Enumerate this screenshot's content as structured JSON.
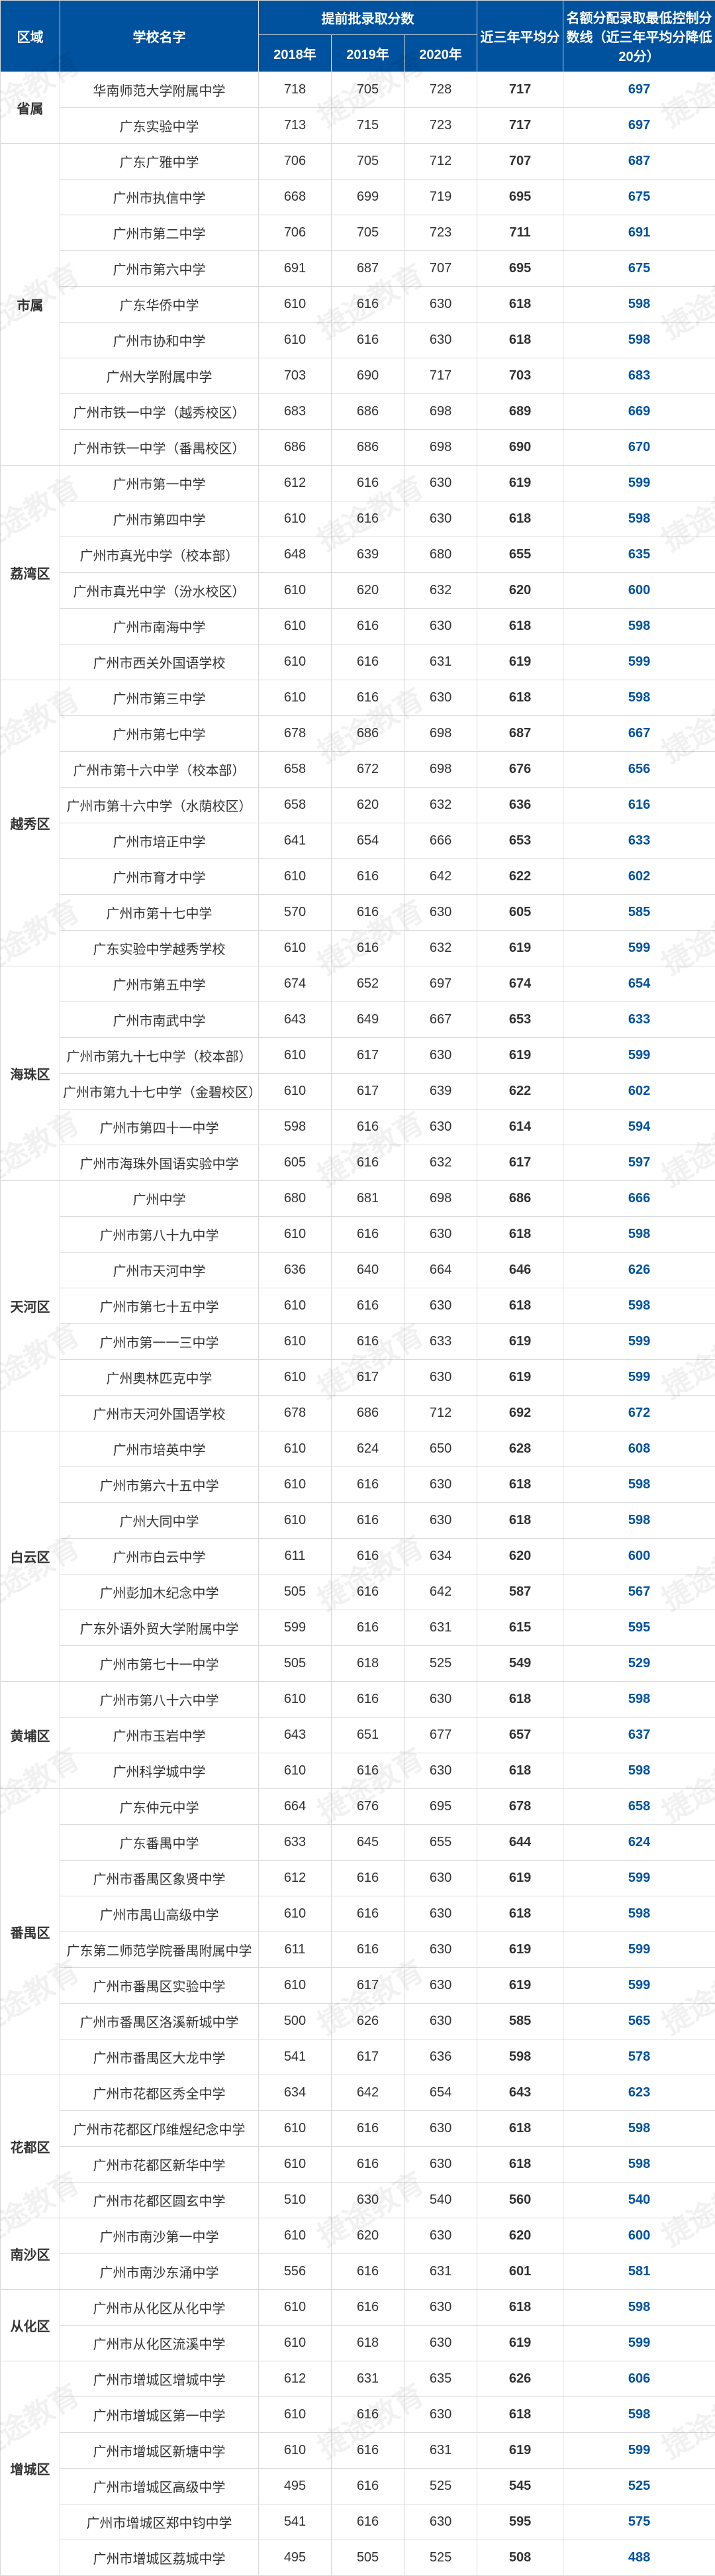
{
  "header": {
    "region": "区域",
    "school": "学校名字",
    "score_group": "提前批录取分数",
    "y2018": "2018年",
    "y2019": "2019年",
    "y2020": "2020年",
    "avg": "近三年平均分",
    "ctrl": "名额分配录取最低控制分数线（近三年平均分降低20分）"
  },
  "watermark_text": "捷途教育",
  "regions": [
    {
      "name": "省属",
      "rows": [
        {
          "school": "华南师范大学附属中学",
          "y2018": 718,
          "y2019": 705,
          "y2020": 728,
          "avg": 717,
          "ctrl": 697
        },
        {
          "school": "广东实验中学",
          "y2018": 713,
          "y2019": 715,
          "y2020": 723,
          "avg": 717,
          "ctrl": 697
        }
      ]
    },
    {
      "name": "市属",
      "rows": [
        {
          "school": "广东广雅中学",
          "y2018": 706,
          "y2019": 705,
          "y2020": 712,
          "avg": 707,
          "ctrl": 687
        },
        {
          "school": "广州市执信中学",
          "y2018": 668,
          "y2019": 699,
          "y2020": 719,
          "avg": 695,
          "ctrl": 675
        },
        {
          "school": "广州市第二中学",
          "y2018": 706,
          "y2019": 705,
          "y2020": 723,
          "avg": 711,
          "ctrl": 691
        },
        {
          "school": "广州市第六中学",
          "y2018": 691,
          "y2019": 687,
          "y2020": 707,
          "avg": 695,
          "ctrl": 675
        },
        {
          "school": "广东华侨中学",
          "y2018": 610,
          "y2019": 616,
          "y2020": 630,
          "avg": 618,
          "ctrl": 598
        },
        {
          "school": "广州市协和中学",
          "y2018": 610,
          "y2019": 616,
          "y2020": 630,
          "avg": 618,
          "ctrl": 598
        },
        {
          "school": "广州大学附属中学",
          "y2018": 703,
          "y2019": 690,
          "y2020": 717,
          "avg": 703,
          "ctrl": 683
        },
        {
          "school": "广州市铁一中学（越秀校区）",
          "y2018": 683,
          "y2019": 686,
          "y2020": 698,
          "avg": 689,
          "ctrl": 669
        },
        {
          "school": "广州市铁一中学（番禺校区）",
          "y2018": 686,
          "y2019": 686,
          "y2020": 698,
          "avg": 690,
          "ctrl": 670
        }
      ]
    },
    {
      "name": "荔湾区",
      "rows": [
        {
          "school": "广州市第一中学",
          "y2018": 612,
          "y2019": 616,
          "y2020": 630,
          "avg": 619,
          "ctrl": 599
        },
        {
          "school": "广州市第四中学",
          "y2018": 610,
          "y2019": 616,
          "y2020": 630,
          "avg": 618,
          "ctrl": 598
        },
        {
          "school": "广州市真光中学（校本部）",
          "y2018": 648,
          "y2019": 639,
          "y2020": 680,
          "avg": 655,
          "ctrl": 635
        },
        {
          "school": "广州市真光中学（汾水校区）",
          "y2018": 610,
          "y2019": 620,
          "y2020": 632,
          "avg": 620,
          "ctrl": 600
        },
        {
          "school": "广州市南海中学",
          "y2018": 610,
          "y2019": 616,
          "y2020": 630,
          "avg": 618,
          "ctrl": 598
        },
        {
          "school": "广州市西关外国语学校",
          "y2018": 610,
          "y2019": 616,
          "y2020": 631,
          "avg": 619,
          "ctrl": 599
        }
      ]
    },
    {
      "name": "越秀区",
      "rows": [
        {
          "school": "广州市第三中学",
          "y2018": 610,
          "y2019": 616,
          "y2020": 630,
          "avg": 618,
          "ctrl": 598
        },
        {
          "school": "广州市第七中学",
          "y2018": 678,
          "y2019": 686,
          "y2020": 698,
          "avg": 687,
          "ctrl": 667
        },
        {
          "school": "广州市第十六中学（校本部）",
          "y2018": 658,
          "y2019": 672,
          "y2020": 698,
          "avg": 676,
          "ctrl": 656
        },
        {
          "school": "广州市第十六中学（水荫校区）",
          "y2018": 658,
          "y2019": 620,
          "y2020": 632,
          "avg": 636,
          "ctrl": 616
        },
        {
          "school": "广州市培正中学",
          "y2018": 641,
          "y2019": 654,
          "y2020": 666,
          "avg": 653,
          "ctrl": 633
        },
        {
          "school": "广州市育才中学",
          "y2018": 610,
          "y2019": 616,
          "y2020": 642,
          "avg": 622,
          "ctrl": 602
        },
        {
          "school": "广州市第十七中学",
          "y2018": 570,
          "y2019": 616,
          "y2020": 630,
          "avg": 605,
          "ctrl": 585
        },
        {
          "school": "广东实验中学越秀学校",
          "y2018": 610,
          "y2019": 616,
          "y2020": 632,
          "avg": 619,
          "ctrl": 599
        }
      ]
    },
    {
      "name": "海珠区",
      "rows": [
        {
          "school": "广州市第五中学",
          "y2018": 674,
          "y2019": 652,
          "y2020": 697,
          "avg": 674,
          "ctrl": 654
        },
        {
          "school": "广州市南武中学",
          "y2018": 643,
          "y2019": 649,
          "y2020": 667,
          "avg": 653,
          "ctrl": 633
        },
        {
          "school": "广州市第九十七中学（校本部）",
          "y2018": 610,
          "y2019": 617,
          "y2020": 630,
          "avg": 619,
          "ctrl": 599
        },
        {
          "school": "广州市第九十七中学（金碧校区）",
          "y2018": 610,
          "y2019": 617,
          "y2020": 639,
          "avg": 622,
          "ctrl": 602
        },
        {
          "school": "广州市第四十一中学",
          "y2018": 598,
          "y2019": 616,
          "y2020": 630,
          "avg": 614,
          "ctrl": 594
        },
        {
          "school": "广州市海珠外国语实验中学",
          "y2018": 605,
          "y2019": 616,
          "y2020": 632,
          "avg": 617,
          "ctrl": 597
        }
      ]
    },
    {
      "name": "天河区",
      "rows": [
        {
          "school": "广州中学",
          "y2018": 680,
          "y2019": 681,
          "y2020": 698,
          "avg": 686,
          "ctrl": 666
        },
        {
          "school": "广州市第八十九中学",
          "y2018": 610,
          "y2019": 616,
          "y2020": 630,
          "avg": 618,
          "ctrl": 598
        },
        {
          "school": "广州市天河中学",
          "y2018": 636,
          "y2019": 640,
          "y2020": 664,
          "avg": 646,
          "ctrl": 626
        },
        {
          "school": "广州市第七十五中学",
          "y2018": 610,
          "y2019": 616,
          "y2020": 630,
          "avg": 618,
          "ctrl": 598
        },
        {
          "school": "广州市第一一三中学",
          "y2018": 610,
          "y2019": 616,
          "y2020": 633,
          "avg": 619,
          "ctrl": 599
        },
        {
          "school": "广州奥林匹克中学",
          "y2018": 610,
          "y2019": 617,
          "y2020": 630,
          "avg": 619,
          "ctrl": 599
        },
        {
          "school": "广州市天河外国语学校",
          "y2018": 678,
          "y2019": 686,
          "y2020": 712,
          "avg": 692,
          "ctrl": 672
        }
      ]
    },
    {
      "name": "白云区",
      "rows": [
        {
          "school": "广州市培英中学",
          "y2018": 610,
          "y2019": 624,
          "y2020": 650,
          "avg": 628,
          "ctrl": 608
        },
        {
          "school": "广州市第六十五中学",
          "y2018": 610,
          "y2019": 616,
          "y2020": 630,
          "avg": 618,
          "ctrl": 598
        },
        {
          "school": "广州大同中学",
          "y2018": 610,
          "y2019": 616,
          "y2020": 630,
          "avg": 618,
          "ctrl": 598
        },
        {
          "school": "广州市白云中学",
          "y2018": 611,
          "y2019": 616,
          "y2020": 634,
          "avg": 620,
          "ctrl": 600
        },
        {
          "school": "广州彭加木纪念中学",
          "y2018": 505,
          "y2019": 616,
          "y2020": 642,
          "avg": 587,
          "ctrl": 567
        },
        {
          "school": "广东外语外贸大学附属中学",
          "y2018": 599,
          "y2019": 616,
          "y2020": 631,
          "avg": 615,
          "ctrl": 595
        },
        {
          "school": "广州市第七十一中学",
          "y2018": 505,
          "y2019": 618,
          "y2020": 525,
          "avg": 549,
          "ctrl": 529
        }
      ]
    },
    {
      "name": "黄埔区",
      "rows": [
        {
          "school": "广州市第八十六中学",
          "y2018": 610,
          "y2019": 616,
          "y2020": 630,
          "avg": 618,
          "ctrl": 598
        },
        {
          "school": "广州市玉岩中学",
          "y2018": 643,
          "y2019": 651,
          "y2020": 677,
          "avg": 657,
          "ctrl": 637
        },
        {
          "school": "广州科学城中学",
          "y2018": 610,
          "y2019": 616,
          "y2020": 630,
          "avg": 618,
          "ctrl": 598
        }
      ]
    },
    {
      "name": "番禺区",
      "rows": [
        {
          "school": "广东仲元中学",
          "y2018": 664,
          "y2019": 676,
          "y2020": 695,
          "avg": 678,
          "ctrl": 658
        },
        {
          "school": "广东番禺中学",
          "y2018": 633,
          "y2019": 645,
          "y2020": 655,
          "avg": 644,
          "ctrl": 624
        },
        {
          "school": "广州市番禺区象贤中学",
          "y2018": 612,
          "y2019": 616,
          "y2020": 630,
          "avg": 619,
          "ctrl": 599
        },
        {
          "school": "广州市禺山高级中学",
          "y2018": 610,
          "y2019": 616,
          "y2020": 630,
          "avg": 618,
          "ctrl": 598
        },
        {
          "school": "广东第二师范学院番禺附属中学",
          "y2018": 611,
          "y2019": 616,
          "y2020": 630,
          "avg": 619,
          "ctrl": 599
        },
        {
          "school": "广州市番禺区实验中学",
          "y2018": 610,
          "y2019": 617,
          "y2020": 630,
          "avg": 619,
          "ctrl": 599
        },
        {
          "school": "广州市番禺区洛溪新城中学",
          "y2018": 500,
          "y2019": 626,
          "y2020": 630,
          "avg": 585,
          "ctrl": 565
        },
        {
          "school": "广州市番禺区大龙中学",
          "y2018": 541,
          "y2019": 617,
          "y2020": 636,
          "avg": 598,
          "ctrl": 578
        }
      ]
    },
    {
      "name": "花都区",
      "rows": [
        {
          "school": "广州市花都区秀全中学",
          "y2018": 634,
          "y2019": 642,
          "y2020": 654,
          "avg": 643,
          "ctrl": 623
        },
        {
          "school": "广州市花都区邝维煜纪念中学",
          "y2018": 610,
          "y2019": 616,
          "y2020": 630,
          "avg": 618,
          "ctrl": 598
        },
        {
          "school": "广州市花都区新华中学",
          "y2018": 610,
          "y2019": 616,
          "y2020": 630,
          "avg": 618,
          "ctrl": 598
        },
        {
          "school": "广州市花都区圆玄中学",
          "y2018": 510,
          "y2019": 630,
          "y2020": 540,
          "avg": 560,
          "ctrl": 540
        }
      ]
    },
    {
      "name": "南沙区",
      "rows": [
        {
          "school": "广州市南沙第一中学",
          "y2018": 610,
          "y2019": 620,
          "y2020": 630,
          "avg": 620,
          "ctrl": 600
        },
        {
          "school": "广州市南沙东涌中学",
          "y2018": 556,
          "y2019": 616,
          "y2020": 631,
          "avg": 601,
          "ctrl": 581
        }
      ]
    },
    {
      "name": "从化区",
      "rows": [
        {
          "school": "广州市从化区从化中学",
          "y2018": 610,
          "y2019": 616,
          "y2020": 630,
          "avg": 618,
          "ctrl": 598
        },
        {
          "school": "广州市从化区流溪中学",
          "y2018": 610,
          "y2019": 618,
          "y2020": 630,
          "avg": 619,
          "ctrl": 599
        }
      ]
    },
    {
      "name": "增城区",
      "rows": [
        {
          "school": "广州市增城区增城中学",
          "y2018": 612,
          "y2019": 631,
          "y2020": 635,
          "avg": 626,
          "ctrl": 606
        },
        {
          "school": "广州市增城区第一中学",
          "y2018": 610,
          "y2019": 616,
          "y2020": 630,
          "avg": 618,
          "ctrl": 598
        },
        {
          "school": "广州市增城区新塘中学",
          "y2018": 610,
          "y2019": 616,
          "y2020": 631,
          "avg": 619,
          "ctrl": 599
        },
        {
          "school": "广州市增城区高级中学",
          "y2018": 495,
          "y2019": 616,
          "y2020": 525,
          "avg": 545,
          "ctrl": 525
        },
        {
          "school": "广州市增城区郑中钧中学",
          "y2018": 541,
          "y2019": 616,
          "y2020": 630,
          "avg": 595,
          "ctrl": 575
        },
        {
          "school": "广州市增城区荔城中学",
          "y2018": 495,
          "y2019": 505,
          "y2020": 525,
          "avg": 508,
          "ctrl": 488
        }
      ]
    }
  ]
}
